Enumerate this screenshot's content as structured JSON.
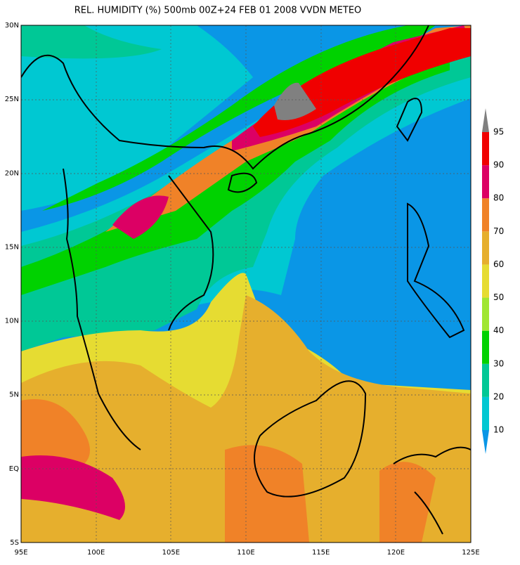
{
  "title": "REL. HUMIDITY (%) 500mb 00Z+24 FEB 01 2008 VVDN METEO",
  "x_tick_labels": [
    "95E",
    "100E",
    "105E",
    "110E",
    "115E",
    "120E",
    "125E"
  ],
  "y_tick_labels": [
    "30N",
    "25N",
    "20N",
    "15N",
    "10N",
    "5N",
    "EQ",
    "5S"
  ],
  "colorbar": {
    "levels": [
      10,
      20,
      30,
      40,
      50,
      60,
      70,
      80,
      90,
      95
    ],
    "colors": [
      "#0a96e6",
      "#00c8d2",
      "#00c896",
      "#00d200",
      "#a0e632",
      "#e6dc32",
      "#e6af2d",
      "#f08228",
      "#dc0064",
      "#f00000",
      "#808080"
    ]
  }
}
